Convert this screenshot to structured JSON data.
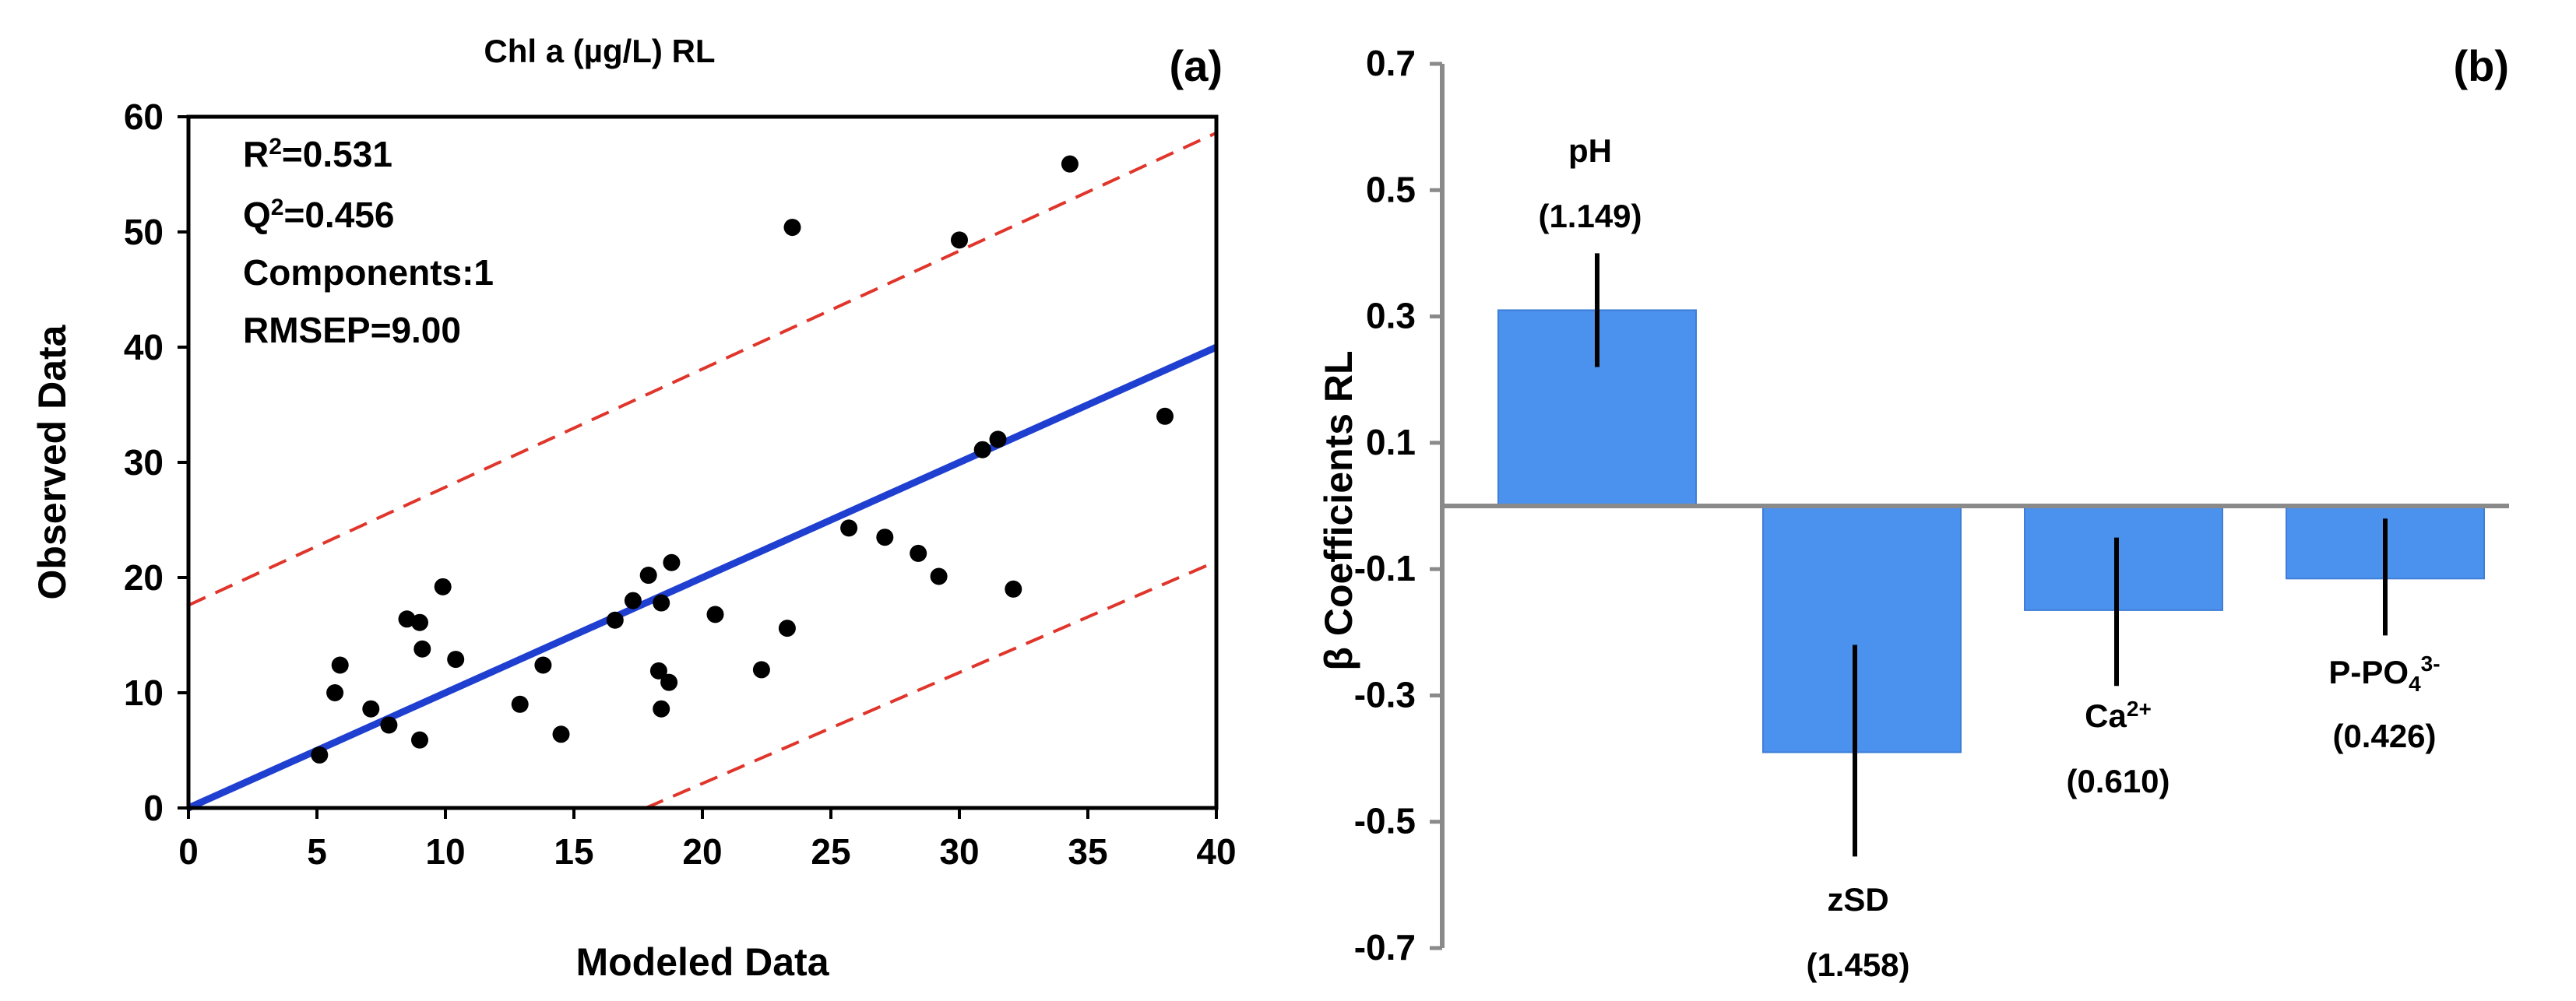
{
  "chart_data": [
    {
      "type": "scatter",
      "panel_label": "(a)",
      "title": "Chl a (µg/L) RL",
      "xlabel": "Modeled Data",
      "ylabel": "Observed Data",
      "xlim": [
        0,
        40
      ],
      "ylim": [
        0,
        60
      ],
      "xticks": [
        "0",
        "5",
        "10",
        "15",
        "20",
        "25",
        "30",
        "35",
        "40"
      ],
      "yticks": [
        "0",
        "10",
        "20",
        "30",
        "40",
        "50",
        "60"
      ],
      "stats": {
        "r2_prefix": "R",
        "r2_sup": "2",
        "r2_value": "=0.531",
        "q2_prefix": "Q",
        "q2_sup": "2",
        "q2_value": "=0.456",
        "components": "Components:1",
        "rmsep": "RMSEP=9.00"
      },
      "fit_line": {
        "x": [
          0,
          40
        ],
        "y": [
          0,
          40
        ],
        "color": "#1f3fd0"
      },
      "prediction_bands": {
        "upper": {
          "x": [
            0,
            40
          ],
          "y": [
            17.6,
            58.6
          ]
        },
        "lower": {
          "x": [
            17.8,
            40
          ],
          "y": [
            0,
            21.4
          ]
        },
        "color": "#e0352b"
      },
      "points": [
        {
          "x": 5.1,
          "y": 4.6
        },
        {
          "x": 5.7,
          "y": 10.0
        },
        {
          "x": 5.9,
          "y": 12.4
        },
        {
          "x": 7.1,
          "y": 8.6
        },
        {
          "x": 7.8,
          "y": 7.2
        },
        {
          "x": 8.5,
          "y": 16.4
        },
        {
          "x": 9.0,
          "y": 16.1
        },
        {
          "x": 9.1,
          "y": 13.8
        },
        {
          "x": 9.0,
          "y": 5.9
        },
        {
          "x": 9.9,
          "y": 19.2
        },
        {
          "x": 10.4,
          "y": 12.9
        },
        {
          "x": 12.9,
          "y": 9.0
        },
        {
          "x": 13.8,
          "y": 12.4
        },
        {
          "x": 14.5,
          "y": 6.4
        },
        {
          "x": 16.6,
          "y": 16.3
        },
        {
          "x": 17.3,
          "y": 18.0
        },
        {
          "x": 17.9,
          "y": 20.2
        },
        {
          "x": 18.4,
          "y": 17.8
        },
        {
          "x": 18.3,
          "y": 11.9
        },
        {
          "x": 18.4,
          "y": 8.6
        },
        {
          "x": 18.7,
          "y": 10.9
        },
        {
          "x": 18.8,
          "y": 21.3
        },
        {
          "x": 20.5,
          "y": 16.8
        },
        {
          "x": 22.3,
          "y": 12.0
        },
        {
          "x": 23.3,
          "y": 15.6
        },
        {
          "x": 23.5,
          "y": 50.4
        },
        {
          "x": 25.7,
          "y": 24.3
        },
        {
          "x": 27.1,
          "y": 23.5
        },
        {
          "x": 28.4,
          "y": 22.1
        },
        {
          "x": 29.2,
          "y": 20.1
        },
        {
          "x": 30.0,
          "y": 49.3
        },
        {
          "x": 30.9,
          "y": 31.1
        },
        {
          "x": 31.5,
          "y": 32.0
        },
        {
          "x": 32.1,
          "y": 19.0
        },
        {
          "x": 34.3,
          "y": 55.9
        },
        {
          "x": 38.0,
          "y": 34.0
        }
      ]
    },
    {
      "type": "bar",
      "panel_label": "(b)",
      "ylabel": "β Coefficients RL",
      "ylim": [
        -0.7,
        0.7
      ],
      "yticks": [
        "0.7",
        "0.5",
        "0.3",
        "0.1",
        "-0.1",
        "-0.3",
        "-0.5",
        "-0.7"
      ],
      "bar_color": "#4b91ee",
      "bars": [
        {
          "name": "pH",
          "name_sup": "",
          "name_sub": "",
          "value": 0.31,
          "err_low": 0.22,
          "err_high": 0.4,
          "vip": "(1.149)"
        },
        {
          "name": "zSD",
          "name_sup": "",
          "name_sub": "",
          "value": -0.39,
          "err_low": -0.555,
          "err_high": -0.22,
          "vip": "(1.458)"
        },
        {
          "name": "Ca",
          "name_sup": "2+",
          "name_sub": "",
          "value": -0.165,
          "err_low": -0.285,
          "err_high": -0.05,
          "vip": "(0.610)"
        },
        {
          "name": "P-PO",
          "name_sup": "3-",
          "name_sub": "4",
          "value": -0.115,
          "err_low": -0.205,
          "err_high": -0.02,
          "vip": "(0.426)"
        }
      ]
    }
  ]
}
